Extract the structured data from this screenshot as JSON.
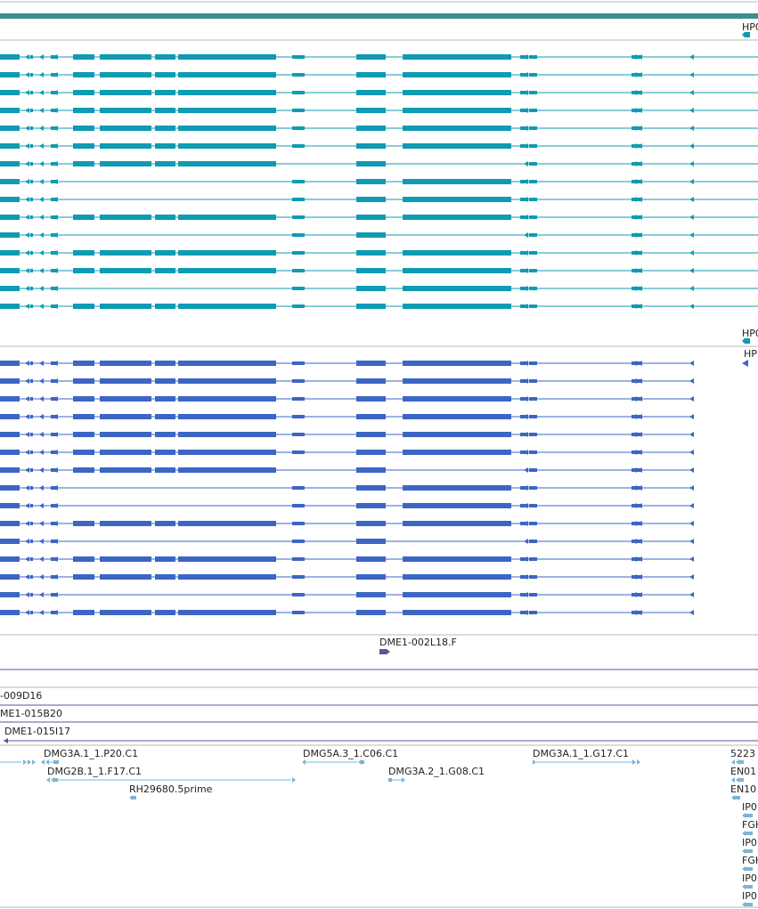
{
  "colors": {
    "top_bar": "#3a8f90",
    "cyan_track": "#0f9bb3",
    "blue_track": "#3c66c4",
    "bac_track": "#6b4e9a",
    "est_track": "#7db4d4",
    "separator": "#b9b9b9",
    "text": "#222222"
  },
  "gene_labels": {
    "cyan_top": "HP0",
    "cyan_bottom": "HP0",
    "blue_top": "HP"
  },
  "bac_labels": [
    "DME1-002L18.F",
    "-009D16",
    "ME1-015B20",
    "DME1-015I17"
  ],
  "est_labels": [
    "DMG3A.1_1.P20.C1",
    "DMG5A.3_1.C06.C1",
    "DMG3A.1_1.G17.C1",
    "5223",
    "DMG2B.1_1.F17.C1",
    "DMG3A.2_1.G08.C1",
    "EN01",
    "RH29680.5prime",
    "EN10",
    "IP0",
    "FGH",
    "IP0",
    "FGH",
    "IP0",
    "IP0"
  ]
}
